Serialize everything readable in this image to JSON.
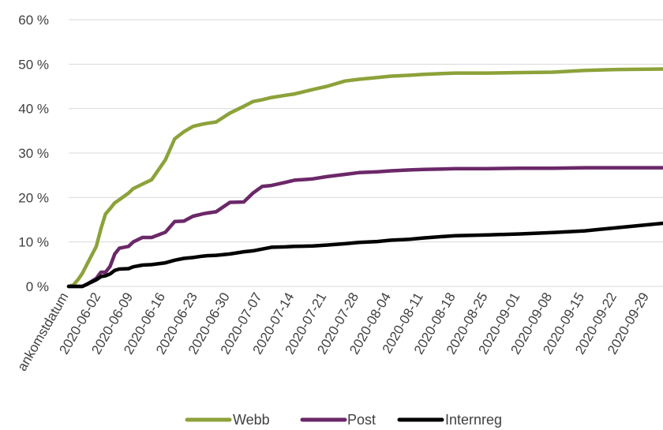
{
  "chart_data": {
    "type": "line",
    "title": "",
    "xlabel": "",
    "ylabel": "",
    "ylim": [
      0,
      60
    ],
    "y_ticks": [
      "0 %",
      "10 %",
      "20 %",
      "30 %",
      "40 %",
      "50 %",
      "60 %"
    ],
    "y_tick_values": [
      0,
      10,
      20,
      30,
      40,
      50,
      60
    ],
    "x_ticks": [
      "ankomstdatum",
      "2020-06-02",
      "2020-06-09",
      "2020-06-16",
      "2020-06-23",
      "2020-06-30",
      "2020-07-07",
      "2020-07-14",
      "2020-07-21",
      "2020-07-28",
      "2020-08-04",
      "2020-08-11",
      "2020-08-18",
      "2020-08-25",
      "2020-09-01",
      "2020-09-08",
      "2020-09-15",
      "2020-09-22",
      "2020-09-29"
    ],
    "x": [
      "2020-05-26",
      "2020-05-27",
      "2020-05-28",
      "2020-05-29",
      "2020-05-30",
      "2020-06-01",
      "2020-06-02",
      "2020-06-03",
      "2020-06-04",
      "2020-06-05",
      "2020-06-06",
      "2020-06-08",
      "2020-06-09",
      "2020-06-11",
      "2020-06-13",
      "2020-06-16",
      "2020-06-18",
      "2020-06-20",
      "2020-06-22",
      "2020-06-24",
      "2020-06-25",
      "2020-06-27",
      "2020-06-30",
      "2020-07-03",
      "2020-07-05",
      "2020-07-07",
      "2020-07-09",
      "2020-07-12",
      "2020-07-14",
      "2020-07-18",
      "2020-07-21",
      "2020-07-25",
      "2020-07-28",
      "2020-08-01",
      "2020-08-04",
      "2020-08-08",
      "2020-08-11",
      "2020-08-15",
      "2020-08-18",
      "2020-08-25",
      "2020-09-01",
      "2020-09-08",
      "2020-09-15",
      "2020-09-22",
      "2020-10-02"
    ],
    "series": [
      {
        "name": "Webb",
        "color": "#8ca23a",
        "values": [
          0,
          0.3,
          1.5,
          3,
          5,
          9,
          13,
          16.3,
          17.5,
          18.8,
          19.5,
          21,
          22,
          23,
          24,
          28.5,
          33.2,
          34.8,
          36,
          36.5,
          36.7,
          37,
          39,
          40.5,
          41.6,
          42,
          42.5,
          43,
          43.3,
          44.3,
          45,
          46.2,
          46.6,
          47,
          47.3,
          47.5,
          47.7,
          47.9,
          48,
          48,
          48.1,
          48.2,
          48.6,
          48.8,
          48.9
        ]
      },
      {
        "name": "Post",
        "color": "#6b2868",
        "values": [
          0,
          0,
          0,
          0,
          0.5,
          1.8,
          3.2,
          3.2,
          4.5,
          7.3,
          8.6,
          9,
          10,
          11,
          11,
          12.2,
          14.6,
          14.7,
          15.8,
          16.3,
          16.5,
          16.8,
          18.9,
          19,
          21,
          22.5,
          22.7,
          23.4,
          23.9,
          24.2,
          24.7,
          25.2,
          25.6,
          25.8,
          26.0,
          26.2,
          26.3,
          26.4,
          26.5,
          26.5,
          26.6,
          26.6,
          26.7,
          26.7,
          26.7
        ]
      },
      {
        "name": "Internreg",
        "color": "#000000",
        "values": [
          0,
          0,
          0,
          0,
          0.5,
          1.5,
          2.2,
          2.4,
          2.8,
          3.6,
          3.9,
          4.0,
          4.4,
          4.8,
          4.9,
          5.3,
          5.9,
          6.3,
          6.5,
          6.8,
          6.9,
          7.0,
          7.3,
          7.8,
          8.0,
          8.4,
          8.8,
          8.9,
          9.0,
          9.1,
          9.3,
          9.6,
          9.9,
          10.1,
          10.4,
          10.6,
          10.9,
          11.2,
          11.4,
          11.6,
          11.8,
          12.1,
          12.5,
          13.2,
          14.2
        ]
      }
    ],
    "legend": {
      "position": "bottom"
    },
    "grid": true
  }
}
